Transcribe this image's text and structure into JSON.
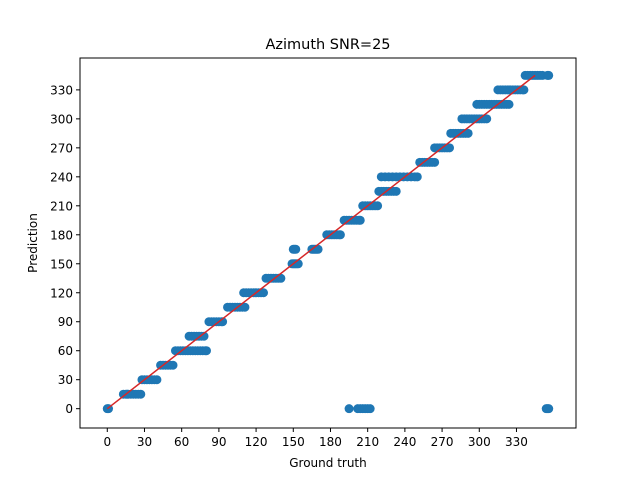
{
  "chart_data": {
    "type": "scatter",
    "title": "Azimuth SNR=25",
    "xlabel": "Ground truth",
    "ylabel": "Prediction",
    "xlim": [
      -22,
      378
    ],
    "ylim": [
      -20,
      363
    ],
    "xticks": [
      0,
      30,
      60,
      90,
      120,
      150,
      180,
      210,
      240,
      270,
      300,
      330
    ],
    "yticks": [
      0,
      30,
      60,
      90,
      120,
      150,
      180,
      210,
      240,
      270,
      300,
      330
    ],
    "grid": false,
    "colors": {
      "points": "#1f77b4",
      "fit_line": "#d62728"
    },
    "series": [
      {
        "kind": "points",
        "points": [
          [
            0,
            0
          ],
          [
            1,
            0
          ],
          [
            13,
            15
          ],
          [
            15,
            15
          ],
          [
            17,
            15
          ],
          [
            19,
            15
          ],
          [
            21,
            15
          ],
          [
            23,
            15
          ],
          [
            25,
            15
          ],
          [
            27,
            15
          ],
          [
            16,
            15
          ],
          [
            28,
            30
          ],
          [
            30,
            30
          ],
          [
            32,
            30
          ],
          [
            34,
            30
          ],
          [
            36,
            30
          ],
          [
            38,
            30
          ],
          [
            40,
            30
          ],
          [
            43,
            45
          ],
          [
            45,
            45
          ],
          [
            47,
            45
          ],
          [
            49,
            45
          ],
          [
            51,
            45
          ],
          [
            53,
            45
          ],
          [
            55,
            60
          ],
          [
            57,
            60
          ],
          [
            59,
            60
          ],
          [
            61,
            60
          ],
          [
            63,
            60
          ],
          [
            65,
            60
          ],
          [
            67,
            60
          ],
          [
            69,
            60
          ],
          [
            71,
            60
          ],
          [
            73,
            60
          ],
          [
            75,
            60
          ],
          [
            77,
            60
          ],
          [
            79,
            60
          ],
          [
            80,
            60
          ],
          [
            66,
            75
          ],
          [
            68,
            75
          ],
          [
            70,
            75
          ],
          [
            72,
            75
          ],
          [
            74,
            75
          ],
          [
            76,
            75
          ],
          [
            78,
            75
          ],
          [
            82,
            90
          ],
          [
            84,
            90
          ],
          [
            86,
            90
          ],
          [
            88,
            90
          ],
          [
            90,
            90
          ],
          [
            92,
            90
          ],
          [
            93,
            90
          ],
          [
            97,
            105
          ],
          [
            99,
            105
          ],
          [
            101,
            105
          ],
          [
            103,
            105
          ],
          [
            105,
            105
          ],
          [
            107,
            105
          ],
          [
            109,
            105
          ],
          [
            111,
            105
          ],
          [
            110,
            120
          ],
          [
            112,
            120
          ],
          [
            114,
            120
          ],
          [
            116,
            120
          ],
          [
            118,
            120
          ],
          [
            120,
            120
          ],
          [
            122,
            120
          ],
          [
            124,
            120
          ],
          [
            126,
            120
          ],
          [
            128,
            135
          ],
          [
            130,
            135
          ],
          [
            132,
            135
          ],
          [
            134,
            135
          ],
          [
            136,
            135
          ],
          [
            138,
            135
          ],
          [
            140,
            135
          ],
          [
            149,
            150
          ],
          [
            150,
            150
          ],
          [
            151,
            150
          ],
          [
            152,
            150
          ],
          [
            153,
            150
          ],
          [
            154,
            150
          ],
          [
            150,
            165
          ],
          [
            151,
            165
          ],
          [
            152,
            165
          ],
          [
            165,
            165
          ],
          [
            166,
            165
          ],
          [
            167,
            165
          ],
          [
            168,
            165
          ],
          [
            169,
            165
          ],
          [
            170,
            165
          ],
          [
            177,
            180
          ],
          [
            179,
            180
          ],
          [
            181,
            180
          ],
          [
            183,
            180
          ],
          [
            185,
            180
          ],
          [
            187,
            180
          ],
          [
            188,
            180
          ],
          [
            191,
            195
          ],
          [
            193,
            195
          ],
          [
            195,
            195
          ],
          [
            197,
            195
          ],
          [
            199,
            195
          ],
          [
            201,
            195
          ],
          [
            203,
            195
          ],
          [
            204,
            195
          ],
          [
            195,
            0
          ],
          [
            202,
            0
          ],
          [
            204,
            0
          ],
          [
            206,
            0
          ],
          [
            208,
            0
          ],
          [
            210,
            0
          ],
          [
            212,
            0
          ],
          [
            206,
            210
          ],
          [
            208,
            210
          ],
          [
            210,
            210
          ],
          [
            212,
            210
          ],
          [
            214,
            210
          ],
          [
            216,
            210
          ],
          [
            218,
            210
          ],
          [
            219,
            225
          ],
          [
            221,
            225
          ],
          [
            223,
            225
          ],
          [
            225,
            225
          ],
          [
            227,
            225
          ],
          [
            229,
            225
          ],
          [
            231,
            225
          ],
          [
            233,
            225
          ],
          [
            221,
            240
          ],
          [
            224,
            240
          ],
          [
            227,
            240
          ],
          [
            230,
            240
          ],
          [
            233,
            240
          ],
          [
            236,
            240
          ],
          [
            239,
            240
          ],
          [
            242,
            240
          ],
          [
            245,
            240
          ],
          [
            248,
            240
          ],
          [
            250,
            240
          ],
          [
            252,
            255
          ],
          [
            254,
            255
          ],
          [
            256,
            255
          ],
          [
            258,
            255
          ],
          [
            260,
            255
          ],
          [
            262,
            255
          ],
          [
            264,
            255
          ],
          [
            264,
            270
          ],
          [
            266,
            270
          ],
          [
            268,
            270
          ],
          [
            270,
            270
          ],
          [
            272,
            270
          ],
          [
            274,
            270
          ],
          [
            276,
            270
          ],
          [
            277,
            285
          ],
          [
            279,
            285
          ],
          [
            281,
            285
          ],
          [
            283,
            285
          ],
          [
            285,
            285
          ],
          [
            287,
            285
          ],
          [
            289,
            285
          ],
          [
            291,
            285
          ],
          [
            286,
            300
          ],
          [
            288,
            300
          ],
          [
            290,
            300
          ],
          [
            292,
            300
          ],
          [
            294,
            300
          ],
          [
            296,
            300
          ],
          [
            298,
            300
          ],
          [
            300,
            300
          ],
          [
            302,
            300
          ],
          [
            304,
            300
          ],
          [
            306,
            300
          ],
          [
            298,
            315
          ],
          [
            300,
            315
          ],
          [
            302,
            315
          ],
          [
            304,
            315
          ],
          [
            306,
            315
          ],
          [
            308,
            315
          ],
          [
            310,
            315
          ],
          [
            312,
            315
          ],
          [
            314,
            315
          ],
          [
            316,
            315
          ],
          [
            318,
            315
          ],
          [
            320,
            315
          ],
          [
            322,
            315
          ],
          [
            324,
            315
          ],
          [
            315,
            330
          ],
          [
            317,
            330
          ],
          [
            319,
            330
          ],
          [
            321,
            330
          ],
          [
            323,
            330
          ],
          [
            325,
            330
          ],
          [
            327,
            330
          ],
          [
            329,
            330
          ],
          [
            331,
            330
          ],
          [
            333,
            330
          ],
          [
            335,
            330
          ],
          [
            336,
            330
          ],
          [
            337,
            345
          ],
          [
            339,
            345
          ],
          [
            341,
            345
          ],
          [
            343,
            345
          ],
          [
            345,
            345
          ],
          [
            347,
            345
          ],
          [
            349,
            345
          ],
          [
            351,
            345
          ],
          [
            355,
            345
          ],
          [
            356,
            345
          ],
          [
            354,
            0
          ],
          [
            355,
            0
          ],
          [
            356,
            0
          ]
        ]
      },
      {
        "kind": "line",
        "points": [
          [
            0,
            0
          ],
          [
            345,
            345
          ]
        ]
      }
    ]
  }
}
